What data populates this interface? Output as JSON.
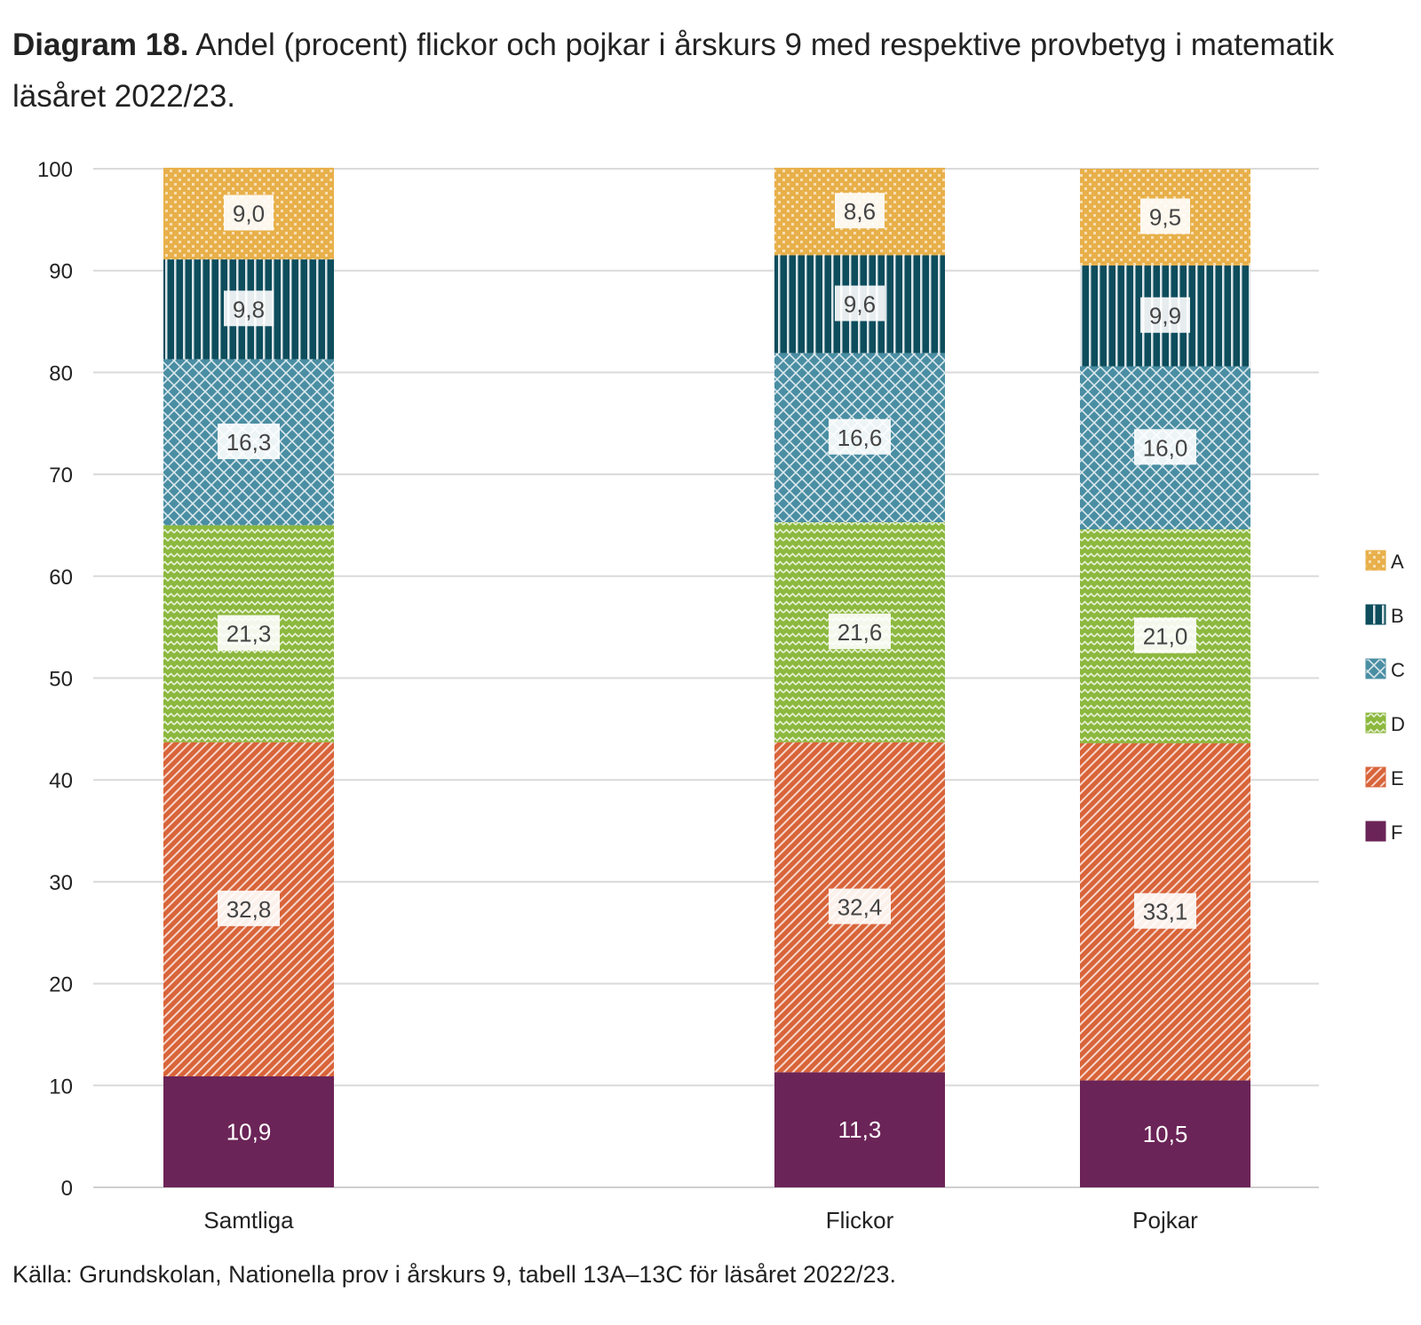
{
  "title_bold": "Diagram 18.",
  "title_rest": "Andel (procent) flickor och pojkar i årskurs 9 med respektive provbetyg i matematik läsåret 2022/23.",
  "source": "Källa: Grundskolan, Nationella prov i årskurs 9, tabell 13A–13C för läsåret 2022/23.",
  "chart_data": {
    "type": "bar",
    "stacked": true,
    "categories": [
      "Samtliga",
      "Flickor",
      "Pojkar"
    ],
    "series": [
      {
        "name": "F",
        "values": [
          10.9,
          11.3,
          10.5
        ],
        "labels": [
          "10,9",
          "11,3",
          "10,5"
        ],
        "color": "#6b2457",
        "pattern": "solid"
      },
      {
        "name": "E",
        "values": [
          32.8,
          32.4,
          33.1
        ],
        "labels": [
          "32,8",
          "32,4",
          "33,1"
        ],
        "color": "#d9643a",
        "pattern": "diagonal"
      },
      {
        "name": "D",
        "values": [
          21.3,
          21.6,
          21.0
        ],
        "labels": [
          "21,3",
          "21,6",
          "21,0"
        ],
        "color": "#8cb83e",
        "pattern": "zigzag"
      },
      {
        "name": "C",
        "values": [
          16.3,
          16.6,
          16.0
        ],
        "labels": [
          "16,3",
          "16,6",
          "16,0"
        ],
        "color": "#4a8ea3",
        "pattern": "crosshatch"
      },
      {
        "name": "B",
        "values": [
          9.8,
          9.6,
          9.9
        ],
        "labels": [
          "9,8",
          "9,6",
          "9,9"
        ],
        "color": "#0d4d5c",
        "pattern": "vertical"
      },
      {
        "name": "A",
        "values": [
          9.0,
          8.6,
          9.5
        ],
        "labels": [
          "9,0",
          "8,6",
          "9,5"
        ],
        "color": "#e8b04a",
        "pattern": "dots"
      }
    ],
    "yticks": [
      "0",
      "10",
      "20",
      "30",
      "40",
      "50",
      "60",
      "70",
      "80",
      "90",
      "100"
    ],
    "ylim": [
      0,
      100
    ],
    "grid": true,
    "legend": "right",
    "xlabel": "",
    "ylabel": ""
  }
}
